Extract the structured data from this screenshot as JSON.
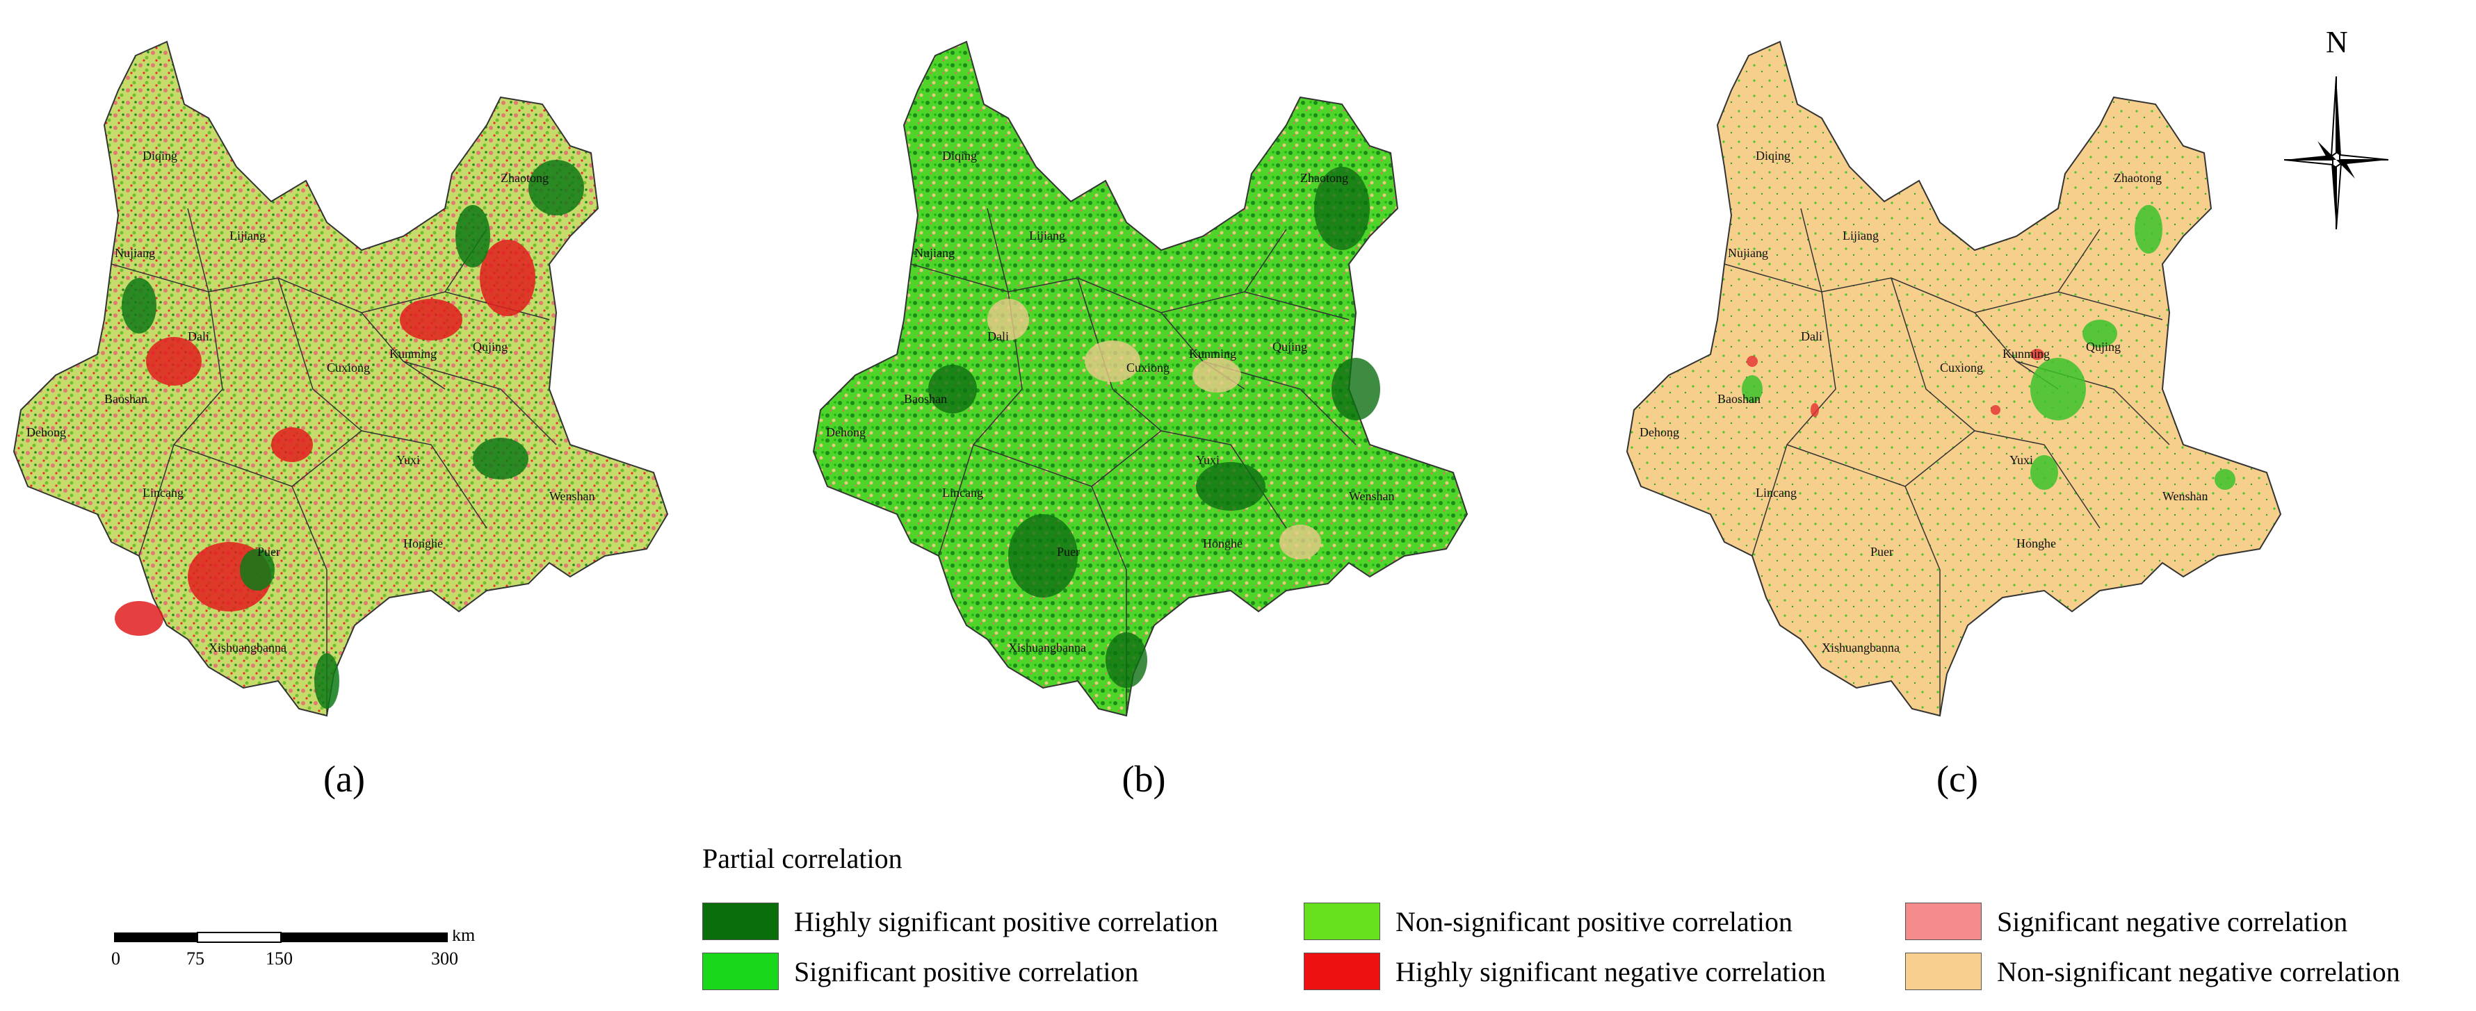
{
  "panels": [
    {
      "label": "(a)",
      "base_color": "#c6dc6a",
      "places": [
        "Diqing",
        "Nujiang",
        "Lijiang",
        "Dali",
        "Baoshan",
        "Dehong",
        "Lincang",
        "Puer",
        "Xishuangbanna",
        "Cuxiong",
        "Kunming",
        "Qujing",
        "Zhaotong",
        "Yuxi",
        "Honghe",
        "Wenshan"
      ]
    },
    {
      "label": "(b)",
      "base_color": "#4fd42a",
      "places": [
        "Diqing",
        "Nujiang",
        "Lijiang",
        "Dali",
        "Baoshan",
        "Dehong",
        "Lincang",
        "Puer",
        "Xishuangbanna",
        "Cuxiong",
        "Kunming",
        "Qujing",
        "Zhaotong",
        "Yuxi",
        "Honghe",
        "Wenshan"
      ]
    },
    {
      "label": "(c)",
      "base_color": "#f7cf8c",
      "places": [
        "Diqing",
        "Nujiang",
        "Lijiang",
        "Dali",
        "Baoshan",
        "Dehong",
        "Lincang",
        "Puer",
        "Xishuangbanna",
        "Cuxiong",
        "Kunming",
        "Qujing",
        "Zhaotong",
        "Yuxi",
        "Honghe",
        "Wenshan"
      ]
    }
  ],
  "compass": {
    "north_label": "N"
  },
  "scale": {
    "ticks": [
      "0",
      "75",
      "150",
      "300"
    ],
    "unit": "km"
  },
  "legend": {
    "title": "Partial correlation",
    "items": [
      {
        "label": "Highly significant positive correlation",
        "color": "#0a6e0a"
      },
      {
        "label": "Significant positive correlation",
        "color": "#19d719"
      },
      {
        "label": "Non-significant positive correlation",
        "color": "#66e01c"
      },
      {
        "label": "Highly significant negative correlation",
        "color": "#ee1111"
      },
      {
        "label": "Significant negative correlation",
        "color": "#f58a8a"
      },
      {
        "label": "Non-significant negative correlation",
        "color": "#f8cf8e"
      }
    ]
  }
}
